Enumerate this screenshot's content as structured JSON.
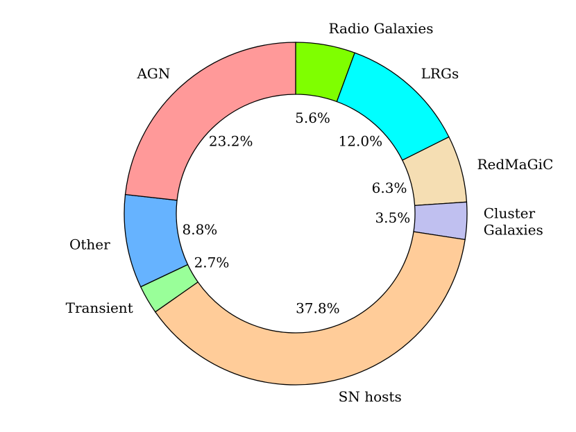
{
  "chart_data": {
    "type": "pie",
    "donut": true,
    "start_angle_deg": 90,
    "direction": "clockwise",
    "slices": [
      {
        "label": "Radio Galaxies",
        "value": 5.6,
        "pct_label": "5.6%",
        "color": "#7fff00"
      },
      {
        "label": "LRGs",
        "value": 12.0,
        "pct_label": "12.0%",
        "color": "#00ffff"
      },
      {
        "label": "RedMaGiC",
        "value": 6.3,
        "pct_label": "6.3%",
        "color": "#f5deb3"
      },
      {
        "label": "Cluster Galaxies",
        "label_lines": [
          "Cluster",
          "Galaxies"
        ],
        "value": 3.5,
        "pct_label": "3.5%",
        "color": "#c0c0f0"
      },
      {
        "label": "SN hosts",
        "value": 37.8,
        "pct_label": "37.8%",
        "color": "#ffcc99"
      },
      {
        "label": "Transient",
        "value": 2.7,
        "pct_label": "2.7%",
        "color": "#99ff99"
      },
      {
        "label": "Other",
        "value": 8.8,
        "pct_label": "8.8%",
        "color": "#66b3ff"
      },
      {
        "label": "AGN",
        "value": 23.2,
        "pct_label": "23.2%",
        "color": "#ff9999"
      }
    ]
  }
}
